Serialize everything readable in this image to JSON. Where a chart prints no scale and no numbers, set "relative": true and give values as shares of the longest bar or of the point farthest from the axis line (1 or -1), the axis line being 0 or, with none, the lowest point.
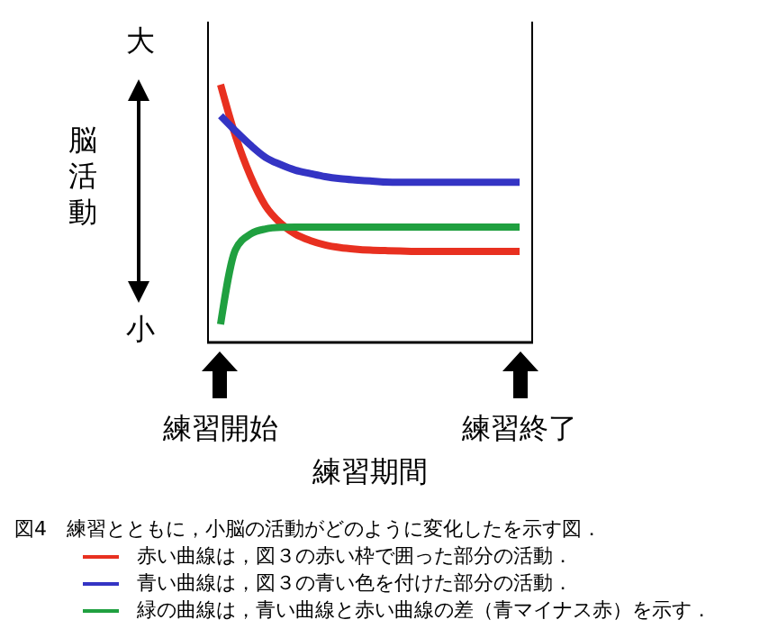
{
  "chart_data": {
    "type": "line",
    "relative": true,
    "ylabel": "脳活動",
    "xlabel": "練習期間",
    "annotations": [
      "大",
      "小",
      "図4　練習とともに，小脳の活動がどのように変化したを示す図．"
    ],
    "categories": [
      "練習開始",
      null,
      null,
      null,
      null,
      null,
      null,
      null,
      null,
      null,
      null,
      null,
      null,
      null,
      null,
      null,
      null,
      null,
      null,
      null,
      "練習終了"
    ],
    "legend": "bottom",
    "marker": "none",
    "line_style": "solid",
    "grid": false,
    "series": [
      {
        "name": "赤い曲線は，図３の赤い枠で囲った部分の活動．",
        "color": "#e83020",
        "values": [
          1,
          0.8,
          0.645,
          0.53,
          0.463,
          0.42,
          0.395,
          0.378,
          0.368,
          0.362,
          0.358,
          0.356,
          0.355,
          0.353,
          0.353,
          0.353,
          0.353,
          0.353,
          0.353,
          0.353,
          0.353
        ]
      },
      {
        "name": "青い曲線は，図３の青い色を付けた部分の活動．",
        "color": "#3434c4",
        "values": [
          0.879,
          0.82,
          0.765,
          0.718,
          0.69,
          0.668,
          0.655,
          0.643,
          0.635,
          0.63,
          0.626,
          0.622,
          0.621,
          0.621,
          0.621,
          0.621,
          0.621,
          0.621,
          0.621,
          0.621,
          0.621
        ]
      },
      {
        "name": "緑の曲線は，青い曲線と赤い曲線の差（青マイナス赤）を示す．",
        "color": "#20a040",
        "values": [
          0.07,
          0.36,
          0.42,
          0.44,
          0.446,
          0.447,
          0.447,
          0.447,
          0.447,
          0.447,
          0.447,
          0.447,
          0.447,
          0.447,
          0.447,
          0.447,
          0.447,
          0.447,
          0.447,
          0.447,
          0.447
        ]
      }
    ]
  }
}
